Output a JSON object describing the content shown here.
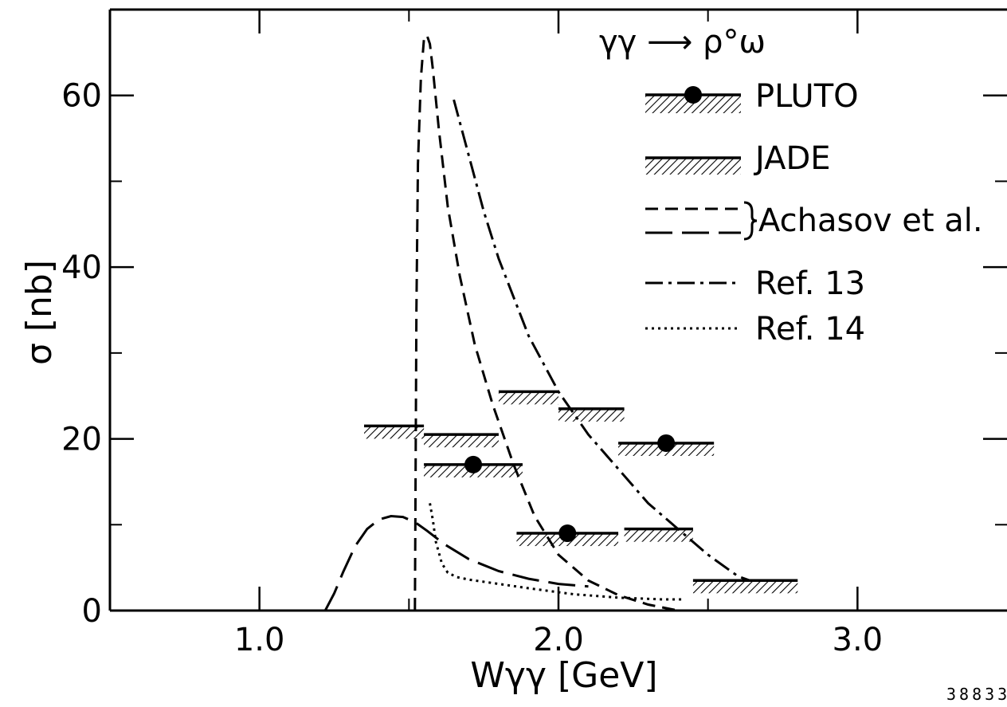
{
  "chart_data": {
    "type": "line",
    "title": "",
    "reaction": "γγ ⟶ ρ°ω",
    "xlabel": "Wγγ [GeV]",
    "ylabel": "σ [nb]",
    "xlim": [
      0.5,
      3.5
    ],
    "ylim": [
      0,
      70
    ],
    "x_ticks": [
      1.0,
      2.0,
      3.0
    ],
    "x_tick_labels": [
      "1.0",
      "2.0",
      "3.0"
    ],
    "y_ticks": [
      0,
      20,
      40,
      60
    ],
    "y_tick_labels": [
      "0",
      "20",
      "40",
      "60"
    ],
    "grid": false,
    "legend_position": "top-right",
    "series": [
      {
        "name": "PLUTO",
        "kind": "points-with-bins",
        "points": [
          {
            "x_lo": 1.55,
            "x_hi": 1.88,
            "y": 17
          },
          {
            "x_lo": 1.86,
            "x_hi": 2.2,
            "y": 9
          },
          {
            "x_lo": 2.2,
            "x_hi": 2.52,
            "y": 19.5
          }
        ]
      },
      {
        "name": "JADE",
        "kind": "bins",
        "points": [
          {
            "x_lo": 1.35,
            "x_hi": 1.55,
            "y": 21.5
          },
          {
            "x_lo": 1.55,
            "x_hi": 1.8,
            "y": 20.5
          },
          {
            "x_lo": 1.8,
            "x_hi": 2.0,
            "y": 25.5
          },
          {
            "x_lo": 2.0,
            "x_hi": 2.22,
            "y": 23.5
          },
          {
            "x_lo": 2.22,
            "x_hi": 2.45,
            "y": 9.5
          },
          {
            "x_lo": 2.45,
            "x_hi": 2.8,
            "y": 3.5
          }
        ]
      },
      {
        "name": "Achasov et al.",
        "style": "short-dash",
        "x": [
          1.52,
          1.525,
          1.53,
          1.54,
          1.55,
          1.56,
          1.57,
          1.58,
          1.6,
          1.63,
          1.67,
          1.72,
          1.78,
          1.85,
          1.92,
          2.0,
          2.1,
          2.2,
          2.3,
          2.4
        ],
        "y": [
          0,
          35,
          52,
          62,
          66.5,
          67,
          66,
          63,
          56,
          47,
          39,
          31,
          24,
          17,
          11,
          6.5,
          3.5,
          1.8,
          0.7,
          0
        ]
      },
      {
        "name": "Achasov et al.",
        "style": "long-dash",
        "x": [
          1.22,
          1.25,
          1.28,
          1.32,
          1.36,
          1.4,
          1.44,
          1.48,
          1.52,
          1.56,
          1.62,
          1.7,
          1.8,
          1.9,
          2.0,
          2.1
        ],
        "y": [
          0,
          2,
          4.5,
          7.5,
          9.5,
          10.6,
          11,
          10.9,
          10.3,
          9.3,
          7.7,
          6,
          4.6,
          3.7,
          3.1,
          2.8
        ]
      },
      {
        "name": "Ref. 13",
        "style": "dash-dot",
        "x": [
          1.65,
          1.7,
          1.75,
          1.8,
          1.9,
          2.0,
          2.1,
          2.2,
          2.3,
          2.4,
          2.5,
          2.6,
          2.64
        ],
        "y": [
          59.5,
          53,
          46.5,
          41,
          32,
          25.5,
          20.5,
          16.5,
          12.5,
          9.5,
          6.5,
          4,
          3.5
        ]
      },
      {
        "name": "Ref. 14",
        "style": "dotted",
        "x": [
          1.57,
          1.58,
          1.59,
          1.61,
          1.63,
          1.66,
          1.7,
          1.78,
          1.9,
          2.05,
          2.2,
          2.35,
          2.42
        ],
        "y": [
          12.5,
          10.5,
          8,
          5.5,
          4.4,
          3.9,
          3.6,
          3.2,
          2.6,
          1.9,
          1.5,
          1.3,
          1.3
        ]
      }
    ],
    "legend": [
      "PLUTO",
      "JADE",
      "Achasov et al.",
      "Ref. 13",
      "Ref. 14"
    ]
  },
  "corner_label": "38833"
}
